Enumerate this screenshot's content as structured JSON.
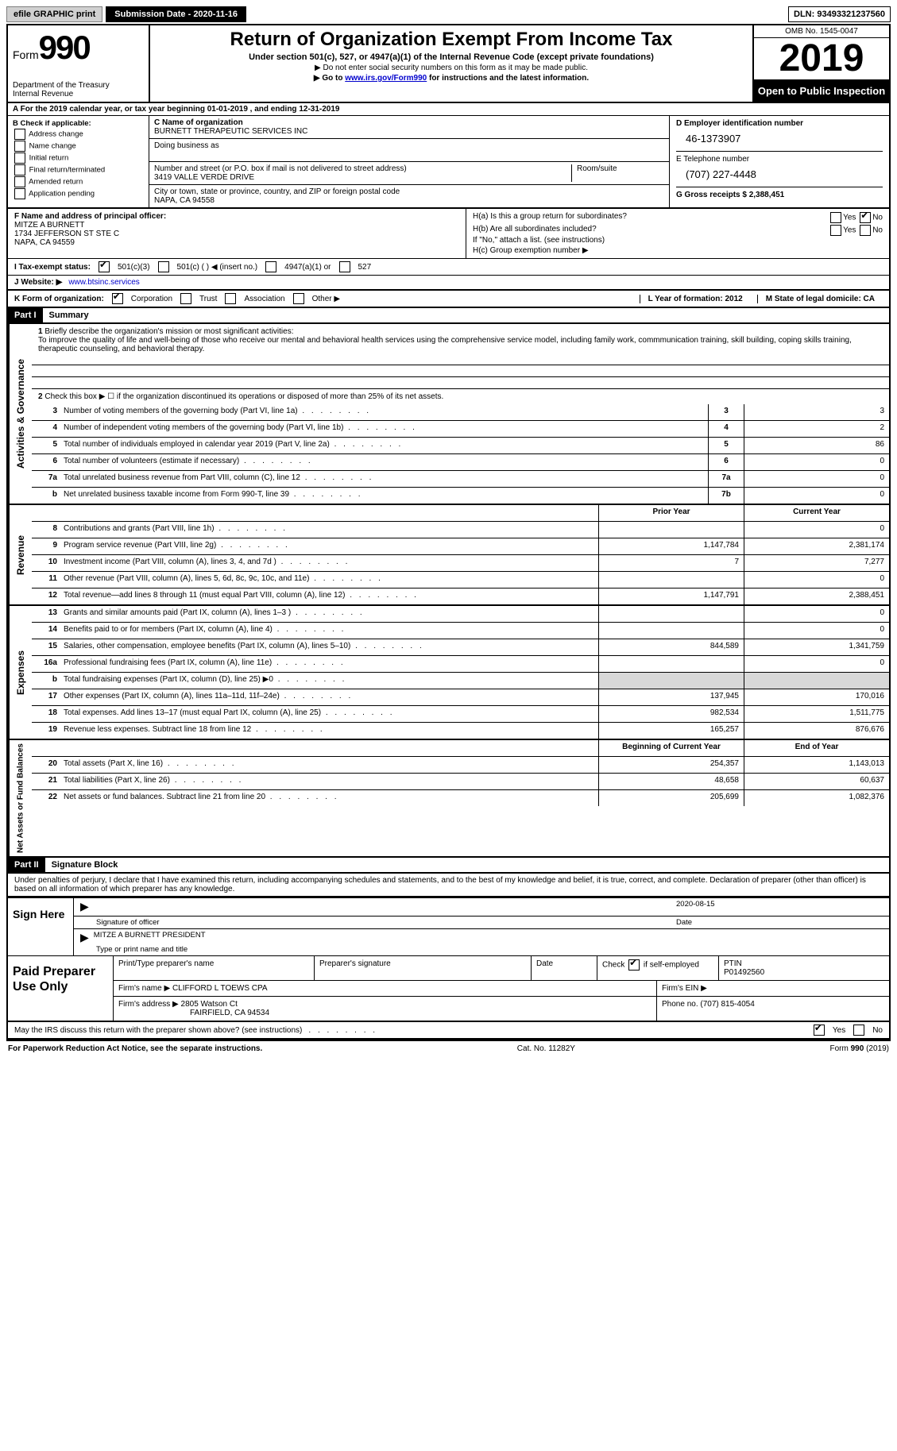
{
  "topbar": {
    "efile_btn": "efile GRAPHIC print",
    "submission_label": "Submission Date - 2020-11-16",
    "dln": "DLN: 93493321237560"
  },
  "header": {
    "form_word": "Form",
    "form_num": "990",
    "dept1": "Department of the Treasury",
    "dept2": "Internal Revenue",
    "title": "Return of Organization Exempt From Income Tax",
    "subtitle": "Under section 501(c), 527, or 4947(a)(1) of the Internal Revenue Code (except private foundations)",
    "note1": "▶ Do not enter social security numbers on this form as it may be made public.",
    "note2_pre": "▶ Go to ",
    "note2_link": "www.irs.gov/Form990",
    "note2_post": " for instructions and the latest information.",
    "omb": "OMB No. 1545-0047",
    "year": "2019",
    "inspection": "Open to Public Inspection"
  },
  "row_a": "A For the 2019 calendar year, or tax year beginning 01-01-2019   , and ending 12-31-2019",
  "b": {
    "label": "B Check if applicable:",
    "opts": [
      "Address change",
      "Name change",
      "Initial return",
      "Final return/terminated",
      "Amended return",
      "Application pending"
    ]
  },
  "c": {
    "name_label": "C Name of organization",
    "name": "BURNETT THERAPEUTIC SERVICES INC",
    "dba_label": "Doing business as",
    "addr_label": "Number and street (or P.O. box if mail is not delivered to street address)",
    "suite_label": "Room/suite",
    "addr": "3419 VALLE VERDE DRIVE",
    "city_label": "City or town, state or province, country, and ZIP or foreign postal code",
    "city": "NAPA, CA  94558"
  },
  "d": {
    "ein_label": "D Employer identification number",
    "ein": "46-1373907",
    "phone_label": "E Telephone number",
    "phone": "(707) 227-4448",
    "receipts_label": "G Gross receipts $ 2,388,451"
  },
  "f": {
    "label": "F  Name and address of principal officer:",
    "name": "MITZE A BURNETT",
    "addr1": "1734 JEFFERSON ST STE C",
    "addr2": "NAPA, CA  94559"
  },
  "h": {
    "a_label": "H(a)  Is this a group return for subordinates?",
    "b_label": "H(b)  Are all subordinates included?",
    "b_note": "If \"No,\" attach a list. (see instructions)",
    "c_label": "H(c)  Group exemption number ▶",
    "yes": "Yes",
    "no": "No"
  },
  "i": {
    "label": "I   Tax-exempt status:",
    "o1": "501(c)(3)",
    "o2": "501(c) (  ) ◀ (insert no.)",
    "o3": "4947(a)(1) or",
    "o4": "527"
  },
  "j": {
    "label": "J   Website: ▶",
    "value": "www.btsinc.services"
  },
  "k": {
    "label": "K Form of organization:",
    "o1": "Corporation",
    "o2": "Trust",
    "o3": "Association",
    "o4": "Other ▶"
  },
  "lm": {
    "l": "L Year of formation: 2012",
    "m": "M State of legal domicile: CA"
  },
  "part1": {
    "hdr": "Part I",
    "title": "Summary",
    "q1": "Briefly describe the organization's mission or most significant activities:",
    "mission": "To improve the quality of life and well-being of those who receive our mental and behavioral health services using the comprehensive service model, including family work, commmunication training, skill building, coping skills training, therapeutic counseling, and behavioral therapy.",
    "q2": "Check this box ▶ ☐  if the organization discontinued its operations or disposed of more than 25% of its net assets.",
    "rows_gov": [
      {
        "n": "3",
        "d": "Number of voting members of the governing body (Part VI, line 1a)",
        "b": "3",
        "v": "3"
      },
      {
        "n": "4",
        "d": "Number of independent voting members of the governing body (Part VI, line 1b)",
        "b": "4",
        "v": "2"
      },
      {
        "n": "5",
        "d": "Total number of individuals employed in calendar year 2019 (Part V, line 2a)",
        "b": "5",
        "v": "86"
      },
      {
        "n": "6",
        "d": "Total number of volunteers (estimate if necessary)",
        "b": "6",
        "v": "0"
      },
      {
        "n": "7a",
        "d": "Total unrelated business revenue from Part VIII, column (C), line 12",
        "b": "7a",
        "v": "0"
      },
      {
        "n": "b",
        "d": "Net unrelated business taxable income from Form 990-T, line 39",
        "b": "7b",
        "v": "0"
      }
    ],
    "col_prior": "Prior Year",
    "col_current": "Current Year",
    "rev": [
      {
        "n": "8",
        "d": "Contributions and grants (Part VIII, line 1h)",
        "p": "",
        "c": "0"
      },
      {
        "n": "9",
        "d": "Program service revenue (Part VIII, line 2g)",
        "p": "1,147,784",
        "c": "2,381,174"
      },
      {
        "n": "10",
        "d": "Investment income (Part VIII, column (A), lines 3, 4, and 7d )",
        "p": "7",
        "c": "7,277"
      },
      {
        "n": "11",
        "d": "Other revenue (Part VIII, column (A), lines 5, 6d, 8c, 9c, 10c, and 11e)",
        "p": "",
        "c": "0"
      },
      {
        "n": "12",
        "d": "Total revenue—add lines 8 through 11 (must equal Part VIII, column (A), line 12)",
        "p": "1,147,791",
        "c": "2,388,451"
      }
    ],
    "exp": [
      {
        "n": "13",
        "d": "Grants and similar amounts paid (Part IX, column (A), lines 1–3 )",
        "p": "",
        "c": "0"
      },
      {
        "n": "14",
        "d": "Benefits paid to or for members (Part IX, column (A), line 4)",
        "p": "",
        "c": "0"
      },
      {
        "n": "15",
        "d": "Salaries, other compensation, employee benefits (Part IX, column (A), lines 5–10)",
        "p": "844,589",
        "c": "1,341,759"
      },
      {
        "n": "16a",
        "d": "Professional fundraising fees (Part IX, column (A), line 11e)",
        "p": "",
        "c": "0"
      },
      {
        "n": "b",
        "d": "Total fundraising expenses (Part IX, column (D), line 25) ▶0",
        "p": "shaded",
        "c": "shaded"
      },
      {
        "n": "17",
        "d": "Other expenses (Part IX, column (A), lines 11a–11d, 11f–24e)",
        "p": "137,945",
        "c": "170,016"
      },
      {
        "n": "18",
        "d": "Total expenses. Add lines 13–17 (must equal Part IX, column (A), line 25)",
        "p": "982,534",
        "c": "1,511,775"
      },
      {
        "n": "19",
        "d": "Revenue less expenses. Subtract line 18 from line 12",
        "p": "165,257",
        "c": "876,676"
      }
    ],
    "col_begin": "Beginning of Current Year",
    "col_end": "End of Year",
    "net": [
      {
        "n": "20",
        "d": "Total assets (Part X, line 16)",
        "p": "254,357",
        "c": "1,143,013"
      },
      {
        "n": "21",
        "d": "Total liabilities (Part X, line 26)",
        "p": "48,658",
        "c": "60,637"
      },
      {
        "n": "22",
        "d": "Net assets or fund balances. Subtract line 21 from line 20",
        "p": "205,699",
        "c": "1,082,376"
      }
    ],
    "side_gov": "Activities & Governance",
    "side_rev": "Revenue",
    "side_exp": "Expenses",
    "side_net": "Net Assets or Fund Balances"
  },
  "part2": {
    "hdr": "Part II",
    "title": "Signature Block",
    "perjury": "Under penalties of perjury, I declare that I have examined this return, including accompanying schedules and statements, and to the best of my knowledge and belief, it is true, correct, and complete. Declaration of preparer (other than officer) is based on all information of which preparer has any knowledge.",
    "sign_here": "Sign Here",
    "sig_officer": "Signature of officer",
    "sig_date_val": "2020-08-15",
    "date": "Date",
    "officer_name": "MITZE A BURNETT  PRESIDENT",
    "type_name": "Type or print name and title"
  },
  "prep": {
    "label": "Paid Preparer Use Only",
    "h1": "Print/Type preparer's name",
    "h2": "Preparer's signature",
    "h3": "Date",
    "h4_pre": "Check",
    "h4_post": "if self-employed",
    "h5": "PTIN",
    "ptin": "P01492560",
    "firm_name_l": "Firm's name    ▶",
    "firm_name": "CLIFFORD L TOEWS CPA",
    "firm_ein_l": "Firm's EIN ▶",
    "firm_addr_l": "Firm's address ▶",
    "firm_addr1": "2805 Watson Ct",
    "firm_addr2": "FAIRFIELD, CA  94534",
    "phone_l": "Phone no. (707) 815-4054"
  },
  "footer": {
    "discuss": "May the IRS discuss this return with the preparer shown above? (see instructions)",
    "yes": "Yes",
    "no": "No",
    "paperwork": "For Paperwork Reduction Act Notice, see the separate instructions.",
    "cat": "Cat. No. 11282Y",
    "form": "Form 990 (2019)"
  }
}
